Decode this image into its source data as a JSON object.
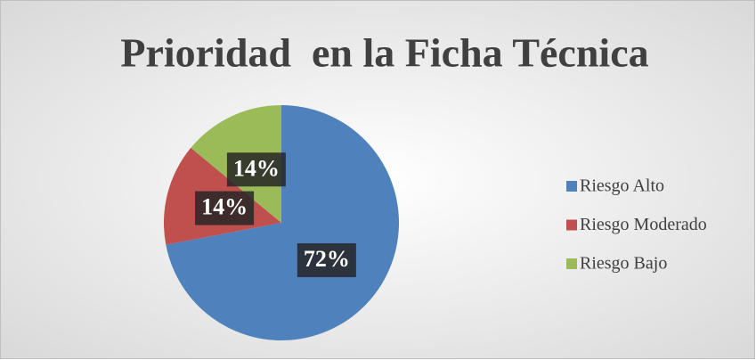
{
  "chart_data": {
    "type": "pie",
    "title": "Prioridad  en la Ficha Técnica",
    "categories": [
      "Riesgo Alto",
      "Riesgo Moderado",
      "Riesgo Bajo"
    ],
    "values": [
      72,
      14,
      14
    ],
    "value_labels": [
      "72%",
      "14%",
      "14%"
    ],
    "colors": [
      "#4f81bd",
      "#c0504d",
      "#9bbb59"
    ],
    "legend": "right"
  }
}
